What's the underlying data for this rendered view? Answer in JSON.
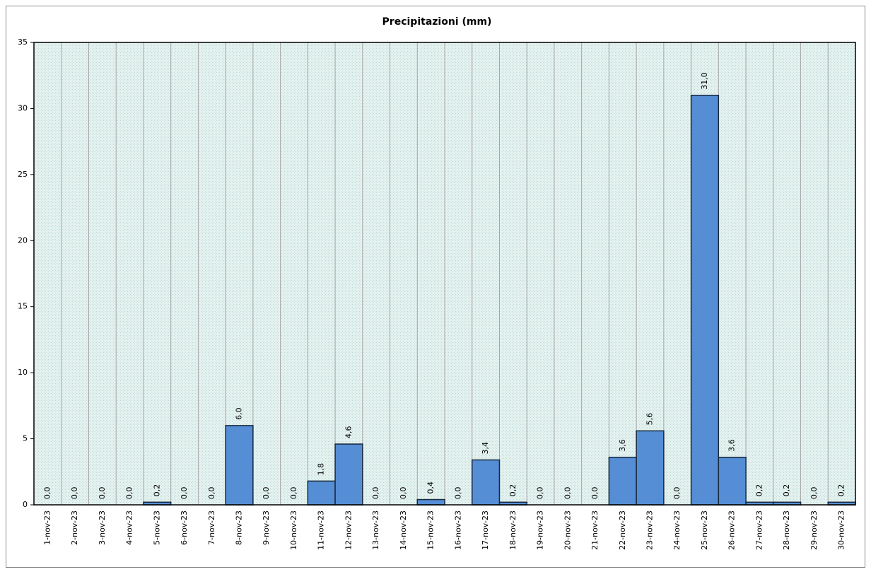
{
  "chart_data": {
    "type": "bar",
    "title": "Precipitazioni  (mm)",
    "categories": [
      "1-nov-23",
      "2-nov-23",
      "3-nov-23",
      "4-nov-23",
      "5-nov-23",
      "6-nov-23",
      "7-nov-23",
      "8-nov-23",
      "9-nov-23",
      "10-nov-23",
      "11-nov-23",
      "12-nov-23",
      "13-nov-23",
      "14-nov-23",
      "15-nov-23",
      "16-nov-23",
      "17-nov-23",
      "18-nov-23",
      "19-nov-23",
      "20-nov-23",
      "21-nov-23",
      "22-nov-23",
      "23-nov-23",
      "24-nov-23",
      "25-nov-23",
      "26-nov-23",
      "27-nov-23",
      "28-nov-23",
      "29-nov-23",
      "30-nov-23"
    ],
    "values": [
      0,
      0,
      0,
      0,
      0.2,
      0,
      0,
      6,
      0,
      0,
      1.8,
      4.6,
      0,
      0,
      0.4,
      0,
      3.4,
      0.2,
      0,
      0,
      0,
      3.6,
      5.6,
      0,
      31,
      3.6,
      0.2,
      0.2,
      0,
      0.2
    ],
    "value_labels": [
      "0,0",
      "0,0",
      "0,0",
      "0,0",
      "0,2",
      "0,0",
      "0,0",
      "6,0",
      "0,0",
      "0,0",
      "1,8",
      "4,6",
      "0,0",
      "0,0",
      "0,4",
      "0,0",
      "3,4",
      "0,2",
      "0,0",
      "0,0",
      "0,0",
      "3,6",
      "5,6",
      "0,0",
      "31,0",
      "3,6",
      "0,2",
      "0,2",
      "0,0",
      "0,2"
    ],
    "color": "#558ed5",
    "ylim": [
      0,
      35
    ],
    "yticks": [
      0,
      5,
      10,
      15,
      20,
      25,
      30,
      35
    ]
  }
}
